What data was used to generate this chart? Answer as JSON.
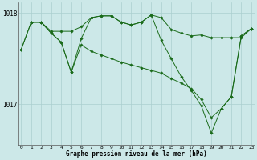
{
  "background_color": "#cce8e8",
  "grid_color": "#aacfcf",
  "line_color": "#1a6b1a",
  "marker_color": "#1a6b1a",
  "series": [
    {
      "x": [
        0,
        1,
        2,
        3,
        4,
        5,
        6,
        7,
        8,
        9,
        10,
        11,
        12,
        13,
        14,
        15,
        16,
        17,
        18,
        19,
        20,
        21,
        22,
        23
      ],
      "y": [
        1017.6,
        1017.9,
        1017.9,
        1017.8,
        1017.8,
        1017.8,
        1017.85,
        1017.95,
        1017.97,
        1017.97,
        1017.9,
        1017.87,
        1017.9,
        1017.98,
        1017.95,
        1017.82,
        1017.78,
        1017.75,
        1017.76,
        1017.73,
        1017.73,
        1017.73,
        1017.73,
        1017.83
      ]
    },
    {
      "x": [
        0,
        1,
        2,
        3,
        4,
        5,
        6,
        7,
        8,
        9,
        10,
        11,
        12,
        13,
        14,
        15,
        16,
        17,
        18,
        19,
        20,
        21,
        22,
        23
      ],
      "y": [
        1017.6,
        1017.9,
        1017.9,
        1017.78,
        1017.68,
        1017.35,
        1017.72,
        1017.95,
        1017.97,
        1017.97,
        1017.9,
        1017.87,
        1017.9,
        1017.98,
        1017.7,
        1017.5,
        1017.3,
        1017.15,
        1016.98,
        1016.68,
        1016.95,
        1017.08,
        1017.75,
        1017.83
      ]
    },
    {
      "x": [
        1,
        2,
        3,
        4,
        5,
        6,
        7,
        8,
        9,
        10,
        11,
        12,
        13,
        14,
        15,
        16,
        17,
        18,
        19,
        20,
        21,
        22,
        23
      ],
      "y": [
        1017.9,
        1017.9,
        1017.78,
        1017.68,
        1017.35,
        1017.65,
        1017.58,
        1017.54,
        1017.5,
        1017.46,
        1017.43,
        1017.4,
        1017.37,
        1017.34,
        1017.28,
        1017.23,
        1017.17,
        1017.05,
        1016.85,
        1016.95,
        1017.08,
        1017.75,
        1017.83
      ]
    }
  ],
  "ylim": [
    1016.55,
    1018.12
  ],
  "yticks": [
    1017,
    1018
  ],
  "ytick_labels": [
    "1017",
    "1018"
  ],
  "xlim": [
    -0.3,
    23.3
  ],
  "xticks": [
    0,
    1,
    2,
    3,
    4,
    5,
    6,
    7,
    8,
    9,
    10,
    11,
    12,
    13,
    14,
    15,
    16,
    17,
    18,
    19,
    20,
    21,
    22,
    23
  ],
  "xlabel": "Graphe pression niveau de la mer (hPa)",
  "figsize": [
    3.2,
    2.0
  ],
  "dpi": 100
}
